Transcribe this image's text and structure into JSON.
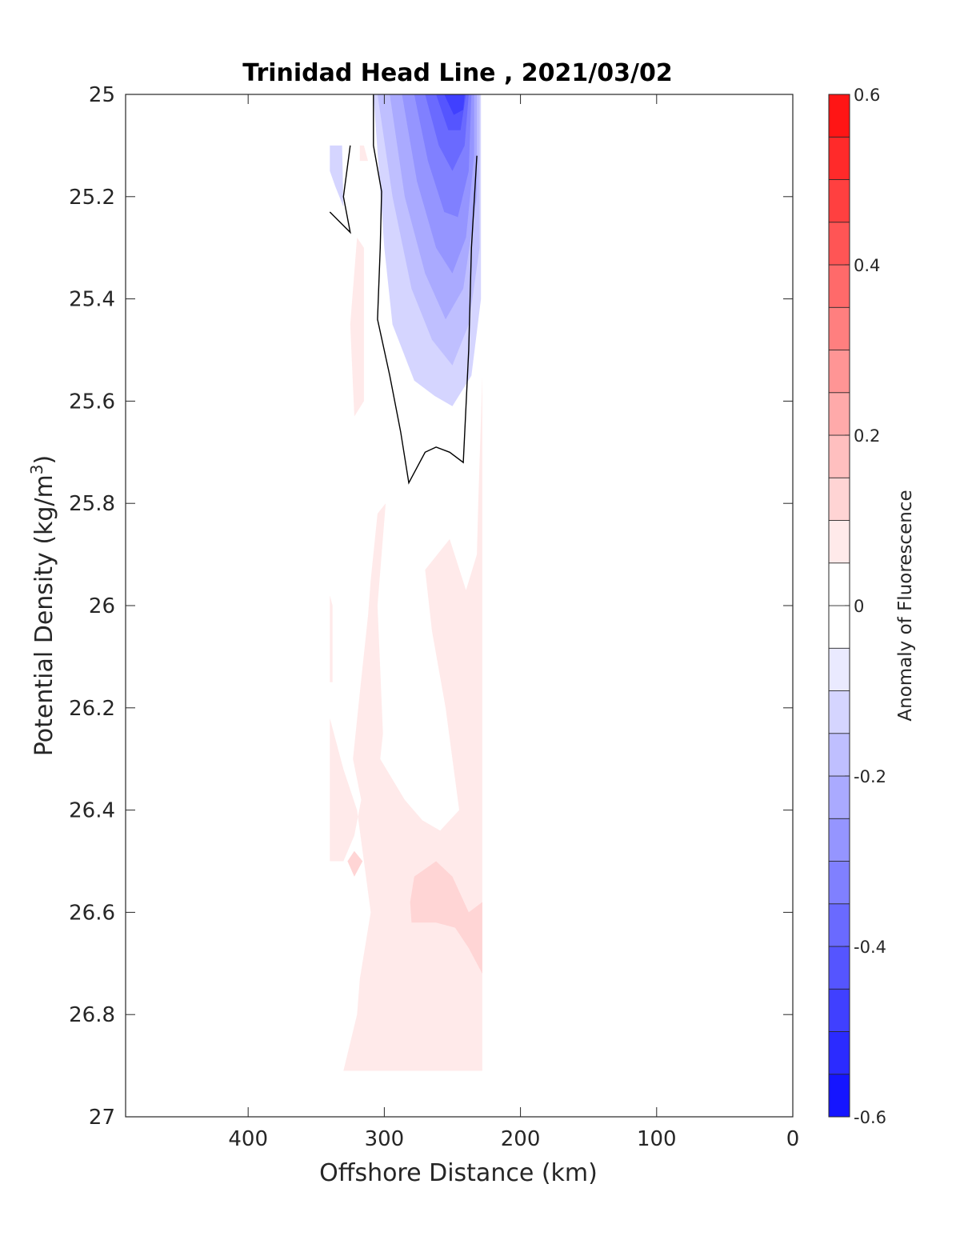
{
  "chart_data": {
    "type": "contourf",
    "title": "Trinidad Head Line , 2021/03/02",
    "xlabel": "Offshore Distance (km)",
    "ylabel": "Potential Density (kg/m",
    "ylabel_superscript": "3",
    "ylabel_suffix": ")",
    "xlim": [
      490,
      0
    ],
    "x_reversed": true,
    "ylim": [
      25,
      27
    ],
    "y_reversed": true,
    "xticks": [
      400,
      300,
      200,
      100,
      0
    ],
    "xtick_labels": [
      "400",
      "300",
      "200",
      "100",
      "0"
    ],
    "yticks": [
      25,
      25.2,
      25.4,
      25.6,
      25.8,
      26,
      26.2,
      26.4,
      26.6,
      26.8,
      27
    ],
    "ytick_labels": [
      "25",
      "25.2",
      "25.4",
      "25.6",
      "25.8",
      "26",
      "26.2",
      "26.4",
      "26.6",
      "26.8",
      "27"
    ],
    "colorbar": {
      "label": "Anomaly of Fluorescence",
      "range": [
        -0.6,
        0.6
      ],
      "step": 0.05,
      "ticks": [
        -0.6,
        -0.4,
        -0.2,
        0,
        0.2,
        0.4,
        0.6
      ],
      "tick_labels": [
        "-0.6",
        "-0.4",
        "-0.2",
        "0",
        "0.2",
        "0.4",
        "0.6"
      ],
      "color_low": "#0000ff",
      "color_mid": "#ffffff",
      "color_high": "#ff0000"
    },
    "regions": [
      {
        "level": -0.1,
        "points": [
          [
            308,
            25
          ],
          [
            300,
            25.3
          ],
          [
            294,
            25.45
          ],
          [
            278,
            25.56
          ],
          [
            263,
            25.59
          ],
          [
            250,
            25.61
          ],
          [
            236,
            25.55
          ],
          [
            229,
            25.4
          ],
          [
            229,
            25
          ]
        ]
      },
      {
        "level": -0.15,
        "points": [
          [
            305,
            25
          ],
          [
            294,
            25.2
          ],
          [
            280,
            25.38
          ],
          [
            265,
            25.48
          ],
          [
            250,
            25.53
          ],
          [
            238,
            25.45
          ],
          [
            230,
            25.3
          ],
          [
            230,
            25
          ]
        ]
      },
      {
        "level": -0.2,
        "points": [
          [
            296,
            25
          ],
          [
            285,
            25.2
          ],
          [
            270,
            25.35
          ],
          [
            255,
            25.44
          ],
          [
            242,
            25.38
          ],
          [
            232,
            25.2
          ],
          [
            232,
            25
          ]
        ]
      },
      {
        "level": -0.25,
        "points": [
          [
            287,
            25
          ],
          [
            276,
            25.17
          ],
          [
            262,
            25.3
          ],
          [
            250,
            25.35
          ],
          [
            240,
            25.28
          ],
          [
            234,
            25.12
          ],
          [
            234,
            25
          ]
        ]
      },
      {
        "level": -0.3,
        "points": [
          [
            278,
            25
          ],
          [
            268,
            25.13
          ],
          [
            256,
            25.23
          ],
          [
            246,
            25.24
          ],
          [
            238,
            25.15
          ],
          [
            236,
            25
          ]
        ]
      },
      {
        "level": -0.35,
        "points": [
          [
            270,
            25
          ],
          [
            260,
            25.1
          ],
          [
            250,
            25.15
          ],
          [
            241,
            25.1
          ],
          [
            238,
            25
          ]
        ]
      },
      {
        "level": -0.4,
        "points": [
          [
            262,
            25
          ],
          [
            253,
            25.07
          ],
          [
            244,
            25.07
          ],
          [
            240,
            25
          ]
        ]
      },
      {
        "level": -0.45,
        "points": [
          [
            256,
            25
          ],
          [
            249,
            25.04
          ],
          [
            242,
            25.03
          ],
          [
            241,
            25
          ]
        ]
      },
      {
        "level": -0.1,
        "points": [
          [
            340,
            25.1
          ],
          [
            331,
            25.1
          ],
          [
            330,
            25.22
          ],
          [
            336,
            25.18
          ],
          [
            340,
            25.15
          ]
        ]
      },
      {
        "level": 0.05,
        "points": [
          [
            318,
            25.1
          ],
          [
            315,
            25.1
          ],
          [
            312,
            25.13
          ],
          [
            318,
            25.13
          ]
        ]
      },
      {
        "level": 0.05,
        "points": [
          [
            320,
            25.28
          ],
          [
            315,
            25.3
          ],
          [
            315,
            25.6
          ],
          [
            322,
            25.63
          ],
          [
            325,
            25.45
          ]
        ]
      },
      {
        "level": 0.05,
        "points": [
          [
            299,
            25.8
          ],
          [
            305,
            26.0
          ],
          [
            301,
            26.25
          ],
          [
            303,
            26.3
          ],
          [
            285,
            26.38
          ],
          [
            272,
            26.42
          ],
          [
            259,
            26.44
          ],
          [
            245,
            26.4
          ],
          [
            250,
            26.3
          ],
          [
            255,
            26.2
          ],
          [
            265,
            26.05
          ],
          [
            270,
            25.93
          ],
          [
            252,
            25.87
          ],
          [
            240,
            25.97
          ],
          [
            232,
            25.9
          ],
          [
            231,
            25.8
          ],
          [
            228,
            25.55
          ],
          [
            228,
            26.91
          ],
          [
            240,
            26.91
          ],
          [
            240,
            26.91
          ],
          [
            330,
            26.91
          ],
          [
            320,
            26.8
          ],
          [
            318,
            26.73
          ],
          [
            310,
            26.6
          ],
          [
            315,
            26.5
          ],
          [
            320,
            26.4
          ],
          [
            330,
            26.32
          ],
          [
            340,
            26.22
          ],
          [
            340,
            26.5
          ],
          [
            330,
            26.5
          ],
          [
            322,
            26.45
          ],
          [
            317,
            26.38
          ],
          [
            323,
            26.3
          ],
          [
            318,
            26.17
          ],
          [
            312,
            26.02
          ],
          [
            310,
            25.95
          ],
          [
            305,
            25.82
          ]
        ]
      },
      {
        "level": 0.05,
        "points": [
          [
            340,
            25.98
          ],
          [
            338,
            26.0
          ],
          [
            338,
            26.15
          ],
          [
            340,
            26.15
          ]
        ]
      },
      {
        "level": 0.1,
        "points": [
          [
            322,
            26.48
          ],
          [
            316,
            26.5
          ],
          [
            322,
            26.53
          ],
          [
            327,
            26.5
          ]
        ]
      },
      {
        "level": 0.1,
        "points": [
          [
            278,
            26.53
          ],
          [
            262,
            26.5
          ],
          [
            250,
            26.53
          ],
          [
            238,
            26.6
          ],
          [
            228,
            26.58
          ],
          [
            228,
            26.72
          ],
          [
            238,
            26.67
          ],
          [
            248,
            26.63
          ],
          [
            262,
            26.62
          ],
          [
            270,
            26.62
          ],
          [
            280,
            26.62
          ],
          [
            281,
            26.58
          ]
        ]
      }
    ],
    "contour_lines": [
      {
        "level": 0,
        "points": [
          [
            308,
            25
          ],
          [
            308,
            25.1
          ],
          [
            302,
            25.19
          ],
          [
            303,
            25.3
          ],
          [
            305,
            25.44
          ],
          [
            296,
            25.55
          ],
          [
            288,
            25.66
          ],
          [
            282,
            25.76
          ],
          [
            270,
            25.7
          ],
          [
            262,
            25.69
          ],
          [
            252,
            25.7
          ],
          [
            242,
            25.72
          ],
          [
            238,
            25.5
          ],
          [
            236,
            25.3
          ],
          [
            232,
            25.12
          ]
        ]
      },
      {
        "level": 0,
        "points": [
          [
            325,
            25.1
          ],
          [
            330,
            25.2
          ],
          [
            325,
            25.27
          ],
          [
            340,
            25.23
          ]
        ]
      }
    ]
  }
}
